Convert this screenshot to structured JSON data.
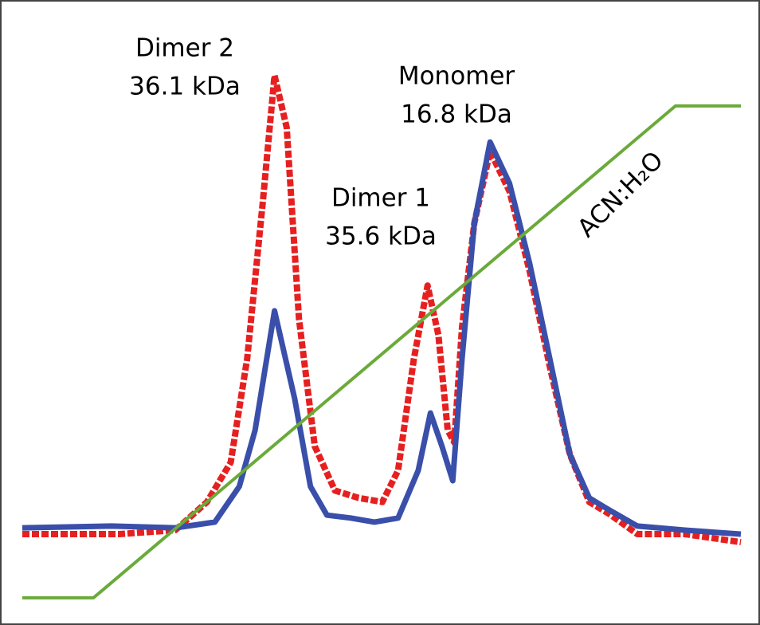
{
  "chart_data": {
    "type": "line",
    "xlim": [
      0,
      100
    ],
    "ylim": [
      0,
      100
    ],
    "annotations": [
      {
        "text": "Dimer 2"
      },
      {
        "text": "36.1 kDa"
      },
      {
        "text": "Dimer 1"
      },
      {
        "text": "35.6 kDa"
      },
      {
        "text": "Monomer"
      },
      {
        "text": "16.8 kDa"
      },
      {
        "text": "ACN:H₂O",
        "color": "#5a8f32"
      }
    ],
    "series": [
      {
        "color": "#e62020",
        "dash": true,
        "x": [
          0,
          13.5,
          21.3,
          25.7,
          29.0,
          31.3,
          33.5,
          35.1,
          36.8,
          38.5,
          40.7,
          43.5,
          46.8,
          50.1,
          52.3,
          54.5,
          56.4,
          57.9,
          59.2,
          60.1,
          61.2,
          62.9,
          65.1,
          67.8,
          70.6,
          73.4,
          76.2,
          78.9,
          81.7,
          85.6,
          92.2,
          100
        ],
        "values": [
          12.5,
          12.5,
          13.2,
          18.1,
          25.0,
          43.1,
          70.8,
          92.4,
          83.3,
          50.0,
          27.8,
          20.1,
          18.8,
          18.1,
          23.6,
          43.1,
          55.8,
          47.2,
          30.6,
          28.5,
          48.6,
          66.7,
          79.2,
          72.2,
          58.3,
          41.7,
          26.4,
          18.1,
          16.0,
          12.5,
          12.5,
          11.1
        ]
      },
      {
        "color": "#3a4faa",
        "dash": false,
        "x": [
          0,
          12.4,
          21.3,
          26.8,
          30.2,
          32.4,
          35.1,
          37.9,
          40.1,
          42.4,
          45.7,
          49.0,
          52.3,
          55.1,
          56.8,
          58.4,
          59.9,
          61.2,
          62.9,
          65.1,
          67.8,
          70.6,
          73.4,
          76.2,
          78.9,
          81.7,
          85.6,
          92.2,
          100
        ],
        "values": [
          13.6,
          13.9,
          13.6,
          14.6,
          20.8,
          30.6,
          51.4,
          36.1,
          20.8,
          15.8,
          15.3,
          14.6,
          15.3,
          23.6,
          33.6,
          27.8,
          21.8,
          43.1,
          66.7,
          80.8,
          73.6,
          59.7,
          43.1,
          26.4,
          18.8,
          16.7,
          13.9,
          13.2,
          12.5
        ]
      },
      {
        "color": "#6aaa3a",
        "dash": false,
        "x": [
          0,
          9.9,
          90.9,
          100
        ],
        "values": [
          1.4,
          1.4,
          87.1,
          87.1
        ]
      }
    ]
  }
}
